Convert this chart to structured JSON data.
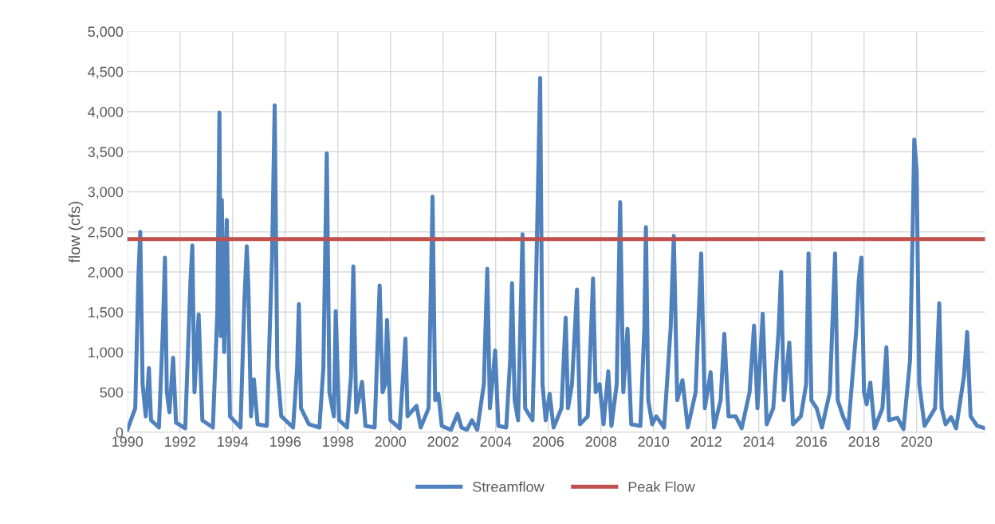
{
  "chart_data": {
    "type": "line",
    "ylabel": "flow (cfs)",
    "xlim": [
      1990,
      2022.6
    ],
    "ylim": [
      0,
      5000
    ],
    "xticks": [
      1990,
      1992,
      1994,
      1996,
      1998,
      2000,
      2002,
      2004,
      2006,
      2008,
      2010,
      2012,
      2014,
      2016,
      2018,
      2020
    ],
    "yticks": [
      {
        "value": 0,
        "label": "0"
      },
      {
        "value": 500,
        "label": "500"
      },
      {
        "value": 1000,
        "label": "1,000"
      },
      {
        "value": 1500,
        "label": "1,500"
      },
      {
        "value": 2000,
        "label": "2,000"
      },
      {
        "value": 2500,
        "label": "2,500"
      },
      {
        "value": 3000,
        "label": "3,000"
      },
      {
        "value": 3500,
        "label": "3,500"
      },
      {
        "value": 4000,
        "label": "4,000"
      },
      {
        "value": 4500,
        "label": "4,500"
      },
      {
        "value": 5000,
        "label": "5,000"
      }
    ],
    "grid": true,
    "legend": "bottom",
    "marker": "none",
    "line_style": "solid",
    "series": [
      {
        "name": "Streamflow",
        "color": "#4f81bd",
        "x": [
          1990.0,
          1990.3,
          1990.42,
          1990.49,
          1990.58,
          1990.7,
          1990.82,
          1990.9,
          1991.2,
          1991.35,
          1991.43,
          1991.5,
          1991.6,
          1991.74,
          1991.85,
          1992.2,
          1992.4,
          1992.47,
          1992.55,
          1992.71,
          1992.85,
          1993.25,
          1993.42,
          1993.5,
          1993.55,
          1993.59,
          1993.68,
          1993.78,
          1993.9,
          1994.3,
          1994.45,
          1994.54,
          1994.6,
          1994.7,
          1994.81,
          1994.95,
          1995.3,
          1995.5,
          1995.6,
          1995.7,
          1995.85,
          1996.3,
          1996.45,
          1996.52,
          1996.6,
          1996.9,
          1997.3,
          1997.45,
          1997.58,
          1997.68,
          1997.85,
          1997.92,
          1998.05,
          1998.35,
          1998.5,
          1998.59,
          1998.7,
          1998.92,
          1999.05,
          1999.4,
          1999.59,
          1999.7,
          1999.8,
          1999.87,
          2000.0,
          2000.35,
          2000.57,
          2000.65,
          2000.99,
          2001.15,
          2001.45,
          2001.6,
          2001.7,
          2001.82,
          2001.95,
          2002.3,
          2002.55,
          2002.7,
          2002.9,
          2003.1,
          2003.3,
          2003.55,
          2003.68,
          2003.78,
          2003.98,
          2004.1,
          2004.4,
          2004.55,
          2004.62,
          2004.72,
          2004.85,
          2005.02,
          2005.12,
          2005.4,
          2005.55,
          2005.69,
          2005.78,
          2005.9,
          2006.05,
          2006.2,
          2006.5,
          2006.66,
          2006.75,
          2006.9,
          2007.09,
          2007.2,
          2007.5,
          2007.7,
          2007.8,
          2007.95,
          2008.1,
          2008.28,
          2008.4,
          2008.6,
          2008.73,
          2008.85,
          2009.01,
          2009.15,
          2009.5,
          2009.65,
          2009.71,
          2009.8,
          2009.95,
          2010.1,
          2010.4,
          2010.65,
          2010.77,
          2010.9,
          2011.1,
          2011.3,
          2011.6,
          2011.81,
          2011.95,
          2012.17,
          2012.3,
          2012.55,
          2012.69,
          2012.85,
          2013.12,
          2013.35,
          2013.65,
          2013.82,
          2013.95,
          2014.15,
          2014.3,
          2014.55,
          2014.75,
          2014.85,
          2014.95,
          2015.16,
          2015.3,
          2015.6,
          2015.8,
          2015.89,
          2016.0,
          2016.2,
          2016.4,
          2016.7,
          2016.9,
          2017.0,
          2017.2,
          2017.4,
          2017.7,
          2017.8,
          2017.9,
          2018.0,
          2018.1,
          2018.24,
          2018.4,
          2018.7,
          2018.85,
          2018.95,
          2019.27,
          2019.5,
          2019.75,
          2019.85,
          2019.91,
          2020.0,
          2020.1,
          2020.3,
          2020.7,
          2020.86,
          2020.95,
          2021.1,
          2021.31,
          2021.5,
          2021.8,
          2021.92,
          2022.05,
          2022.3,
          2022.6
        ],
        "values": [
          30,
          300,
          1950,
          2500,
          600,
          200,
          800,
          150,
          60,
          1280,
          2180,
          500,
          250,
          930,
          120,
          50,
          1900,
          2330,
          500,
          1470,
          150,
          60,
          1500,
          3990,
          1200,
          2900,
          1000,
          2650,
          200,
          60,
          1650,
          2320,
          1800,
          200,
          660,
          100,
          80,
          2200,
          4080,
          800,
          200,
          60,
          800,
          1600,
          300,
          100,
          60,
          800,
          3480,
          500,
          200,
          1510,
          150,
          60,
          700,
          2070,
          250,
          630,
          80,
          60,
          1830,
          500,
          600,
          1400,
          150,
          50,
          1170,
          200,
          330,
          60,
          300,
          2940,
          400,
          480,
          80,
          30,
          230,
          60,
          30,
          150,
          30,
          600,
          2040,
          300,
          1020,
          80,
          60,
          900,
          1860,
          400,
          150,
          2470,
          300,
          150,
          2100,
          4420,
          600,
          150,
          480,
          60,
          300,
          1430,
          300,
          600,
          1780,
          100,
          200,
          1920,
          500,
          600,
          100,
          760,
          80,
          600,
          2870,
          500,
          1290,
          100,
          80,
          1300,
          2560,
          400,
          100,
          200,
          60,
          1300,
          2450,
          400,
          650,
          60,
          500,
          2230,
          300,
          750,
          60,
          400,
          1230,
          200,
          200,
          50,
          500,
          1330,
          300,
          1480,
          100,
          300,
          1250,
          2000,
          400,
          1120,
          100,
          200,
          600,
          2230,
          400,
          300,
          60,
          500,
          2230,
          400,
          200,
          50,
          1250,
          1900,
          2180,
          500,
          350,
          620,
          50,
          300,
          1060,
          150,
          180,
          40,
          900,
          2550,
          3650,
          3270,
          600,
          80,
          300,
          1610,
          300,
          100,
          190,
          50,
          700,
          1250,
          200,
          80,
          50
        ]
      },
      {
        "name": "Peak Flow",
        "color": "#c0504d",
        "x": [
          1990,
          2022.6
        ],
        "values": [
          2410,
          2410
        ]
      }
    ]
  }
}
